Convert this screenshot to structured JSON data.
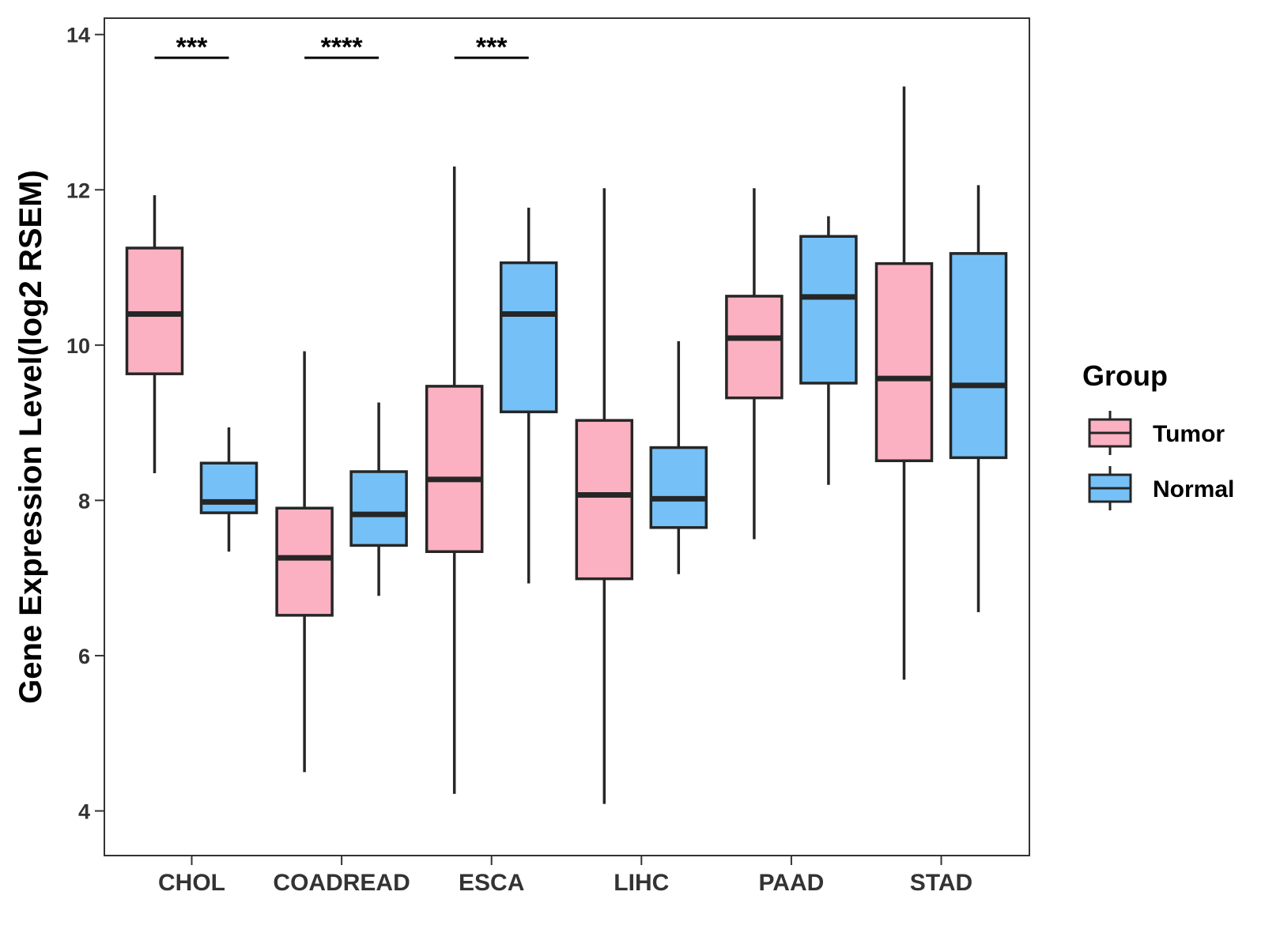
{
  "chart_data": {
    "type": "boxplot",
    "title": "",
    "xlabel": "",
    "ylabel": "Gene Expression Level(log2 RSEM)",
    "ylim": [
      3.5,
      14.2
    ],
    "yticks": [
      4,
      6,
      8,
      10,
      12,
      14
    ],
    "grid": false,
    "legend_position": "right",
    "legend_title": "Group",
    "categories": [
      "CHOL",
      "COADREAD",
      "ESCA",
      "LIHC",
      "PAAD",
      "STAD"
    ],
    "series": [
      {
        "name": "Tumor",
        "color": "#FBB1C1",
        "boxes": [
          {
            "min": 8.35,
            "q1": 9.63,
            "median": 10.4,
            "q3": 11.25,
            "max": 11.93
          },
          {
            "min": 4.5,
            "q1": 6.52,
            "median": 7.26,
            "q3": 7.9,
            "max": 9.92
          },
          {
            "min": 4.22,
            "q1": 7.34,
            "median": 8.27,
            "q3": 9.47,
            "max": 12.3
          },
          {
            "min": 4.09,
            "q1": 6.99,
            "median": 8.07,
            "q3": 9.03,
            "max": 12.02
          },
          {
            "min": 7.5,
            "q1": 9.32,
            "median": 10.09,
            "q3": 10.63,
            "max": 12.02
          },
          {
            "min": 5.69,
            "q1": 8.51,
            "median": 9.57,
            "q3": 11.05,
            "max": 13.33
          }
        ]
      },
      {
        "name": "Normal",
        "color": "#75C1F7",
        "boxes": [
          {
            "min": 7.34,
            "q1": 7.84,
            "median": 7.98,
            "q3": 8.48,
            "max": 8.94
          },
          {
            "min": 6.77,
            "q1": 7.42,
            "median": 7.82,
            "q3": 8.37,
            "max": 9.26
          },
          {
            "min": 6.93,
            "q1": 9.14,
            "median": 10.4,
            "q3": 11.06,
            "max": 11.77
          },
          {
            "min": 7.05,
            "q1": 7.65,
            "median": 8.02,
            "q3": 8.68,
            "max": 10.05
          },
          {
            "min": 8.2,
            "q1": 9.51,
            "median": 10.62,
            "q3": 11.4,
            "max": 11.66
          },
          {
            "min": 6.56,
            "q1": 8.55,
            "median": 9.48,
            "q3": 11.18,
            "max": 12.06
          }
        ]
      }
    ],
    "significance": [
      {
        "category": "CHOL",
        "label": "***",
        "y": 13.7
      },
      {
        "category": "COADREAD",
        "label": "****",
        "y": 13.7
      },
      {
        "category": "ESCA",
        "label": "***",
        "y": 13.7
      }
    ]
  }
}
